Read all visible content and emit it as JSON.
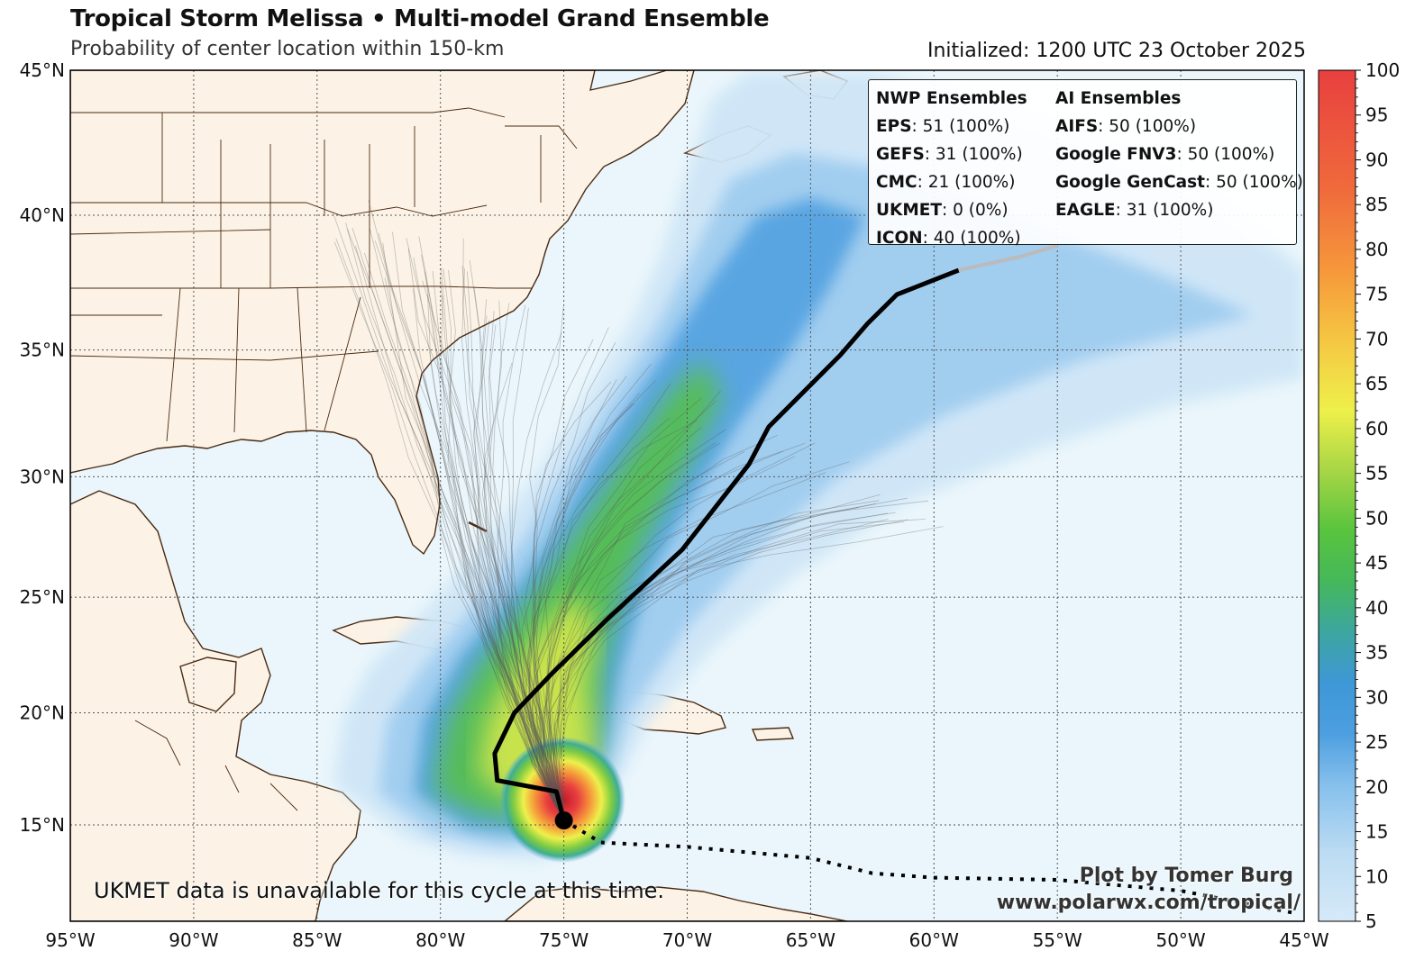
{
  "header": {
    "title": "Tropical Storm Melissa • Multi-model Grand Ensemble",
    "subtitle": "Probability of center location within 150-km",
    "initialized": "Initialized: 1200 UTC 23 October 2025"
  },
  "legend": {
    "nwp_header": "NWP Ensembles",
    "nwp_items": [
      {
        "name": "EPS",
        "value": ": 51 (100%)"
      },
      {
        "name": "GEFS",
        "value": ": 31 (100%)"
      },
      {
        "name": "CMC",
        "value": ": 21 (100%)"
      },
      {
        "name": "UKMET",
        "value": ": 0 (0%)"
      },
      {
        "name": "ICON",
        "value": ": 40 (100%)"
      }
    ],
    "ai_header": "AI Ensembles",
    "ai_items": [
      {
        "name": "AIFS",
        "value": ": 50 (100%)"
      },
      {
        "name": "Google FNV3",
        "value": ": 50 (100%)"
      },
      {
        "name": "Google GenCast",
        "value": ": 50 (100%)"
      },
      {
        "name": "EAGLE",
        "value": ": 31 (100%)"
      }
    ]
  },
  "notes": {
    "ukmet": "UKMET data is unavailable for this cycle at this time.",
    "credit_line1": "Plot by Tomer Burg",
    "credit_line2": "www.polarwx.com/tropical/"
  },
  "map_axes": {
    "lon_labels": [
      "95°W",
      "90°W",
      "85°W",
      "80°W",
      "75°W",
      "70°W",
      "65°W",
      "60°W",
      "55°W",
      "50°W",
      "45°W"
    ],
    "lon_values": [
      -95,
      -90,
      -85,
      -80,
      -75,
      -70,
      -65,
      -60,
      -55,
      -50,
      -45
    ],
    "lat_labels": [
      "45°N",
      "40°N",
      "35°N",
      "30°N",
      "25°N",
      "20°N",
      "15°N"
    ],
    "lat_values": [
      45,
      40,
      35,
      30,
      25,
      20,
      15
    ],
    "lon_range": [
      -95,
      -45
    ],
    "lat_range": [
      10.6,
      45
    ]
  },
  "colorbar": {
    "ticks": [
      5,
      10,
      15,
      20,
      25,
      30,
      35,
      40,
      45,
      50,
      55,
      60,
      65,
      70,
      75,
      80,
      85,
      90,
      95,
      100
    ],
    "range": [
      5,
      100
    ],
    "colors": [
      "#d6e9f8",
      "#a9d3f0",
      "#5aa8e3",
      "#3d9ad8",
      "#3fae8f",
      "#4cc23f",
      "#9ad444",
      "#eef04a",
      "#f7c242",
      "#f7903a",
      "#ee4d3d",
      "#e8403f"
    ]
  },
  "colors": {
    "ocean": "#eaf6fb",
    "land": "#fcf3e6",
    "coast": "#4a2a12",
    "track": "#000000"
  },
  "chart_data": {
    "type": "map",
    "forecast_track_lonlat": [
      [
        -75.0,
        15.2
      ],
      [
        -75.3,
        16.5
      ],
      [
        -77.7,
        17.0
      ],
      [
        -77.8,
        18.2
      ],
      [
        -77.0,
        20.0
      ],
      [
        -75.5,
        21.7
      ],
      [
        -73.3,
        24.0
      ],
      [
        -70.2,
        27.0
      ],
      [
        -67.5,
        30.5
      ],
      [
        -66.7,
        32.0
      ],
      [
        -63.8,
        34.8
      ],
      [
        -62.7,
        36.0
      ],
      [
        -61.5,
        37.1
      ],
      [
        -59.0,
        38.0
      ],
      [
        -56.5,
        38.5
      ],
      [
        -55.0,
        38.9
      ]
    ],
    "past_track_lonlat": [
      [
        -75.0,
        15.2
      ],
      [
        -73.5,
        14.2
      ],
      [
        -70.0,
        14.0
      ],
      [
        -65.0,
        13.5
      ],
      [
        -62.5,
        12.8
      ],
      [
        -60.0,
        12.6
      ],
      [
        -55.0,
        12.5
      ],
      [
        -50.0,
        12.0
      ],
      [
        -45.5,
        11.0
      ]
    ],
    "center_lonlat": [
      -75.0,
      15.2
    ]
  }
}
